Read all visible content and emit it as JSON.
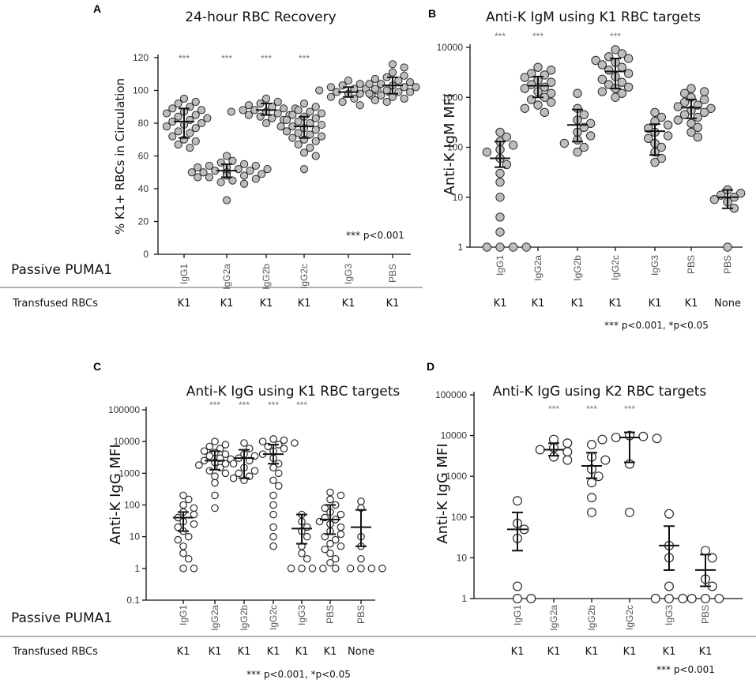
{
  "figure": {
    "row_labels": {
      "passive": "Passive PUMA1",
      "transfused": "Transfused RBCs"
    }
  },
  "chart_data": [
    {
      "panel": "A",
      "type": "scatter",
      "title": "24-hour RBC Recovery",
      "ylabel": "% K1+ RBCs in Circulation",
      "scale": "linear",
      "ylim": [
        0,
        120
      ],
      "yticks": [
        0,
        20,
        40,
        60,
        80,
        100,
        120
      ],
      "ytick_labels": [
        "0",
        "20",
        "40",
        "60",
        "80",
        "100",
        "120"
      ],
      "categories": [
        "IgG1",
        "IgG2a",
        "IgG2b",
        "IgG2c",
        "IgG3",
        "PBS"
      ],
      "transfused": [
        "K1",
        "K1",
        "K1",
        "K1",
        "K1",
        "K1"
      ],
      "significance": [
        "***",
        "***",
        "***",
        "***",
        "",
        ""
      ],
      "mean": [
        81,
        51,
        88,
        78,
        99,
        103
      ],
      "err_low": [
        71,
        47,
        85,
        71,
        96,
        98
      ],
      "err_high": [
        89,
        55,
        92,
        84,
        102,
        108
      ],
      "points": [
        [
          95,
          93,
          92,
          90,
          89,
          88,
          87,
          86,
          85,
          84,
          83,
          82,
          81,
          80,
          79,
          78,
          77,
          75,
          74,
          72,
          70,
          69,
          67,
          65
        ],
        [
          60,
          57,
          56,
          55,
          54,
          54,
          53,
          53,
          52,
          52,
          51,
          51,
          50,
          50,
          50,
          49,
          49,
          48,
          48,
          47,
          47,
          46,
          45,
          44,
          43,
          33
        ],
        [
          95,
          93,
          92,
          91,
          90,
          89,
          89,
          88,
          88,
          87,
          87,
          86,
          85,
          85,
          84,
          83,
          82,
          80
        ],
        [
          92,
          90,
          88,
          87,
          86,
          85,
          84,
          83,
          82,
          81,
          80,
          79,
          78,
          78,
          77,
          76,
          75,
          74,
          73,
          72,
          71,
          70,
          69,
          67,
          65,
          62,
          60,
          52
        ],
        [
          106,
          104,
          103,
          102,
          101,
          101,
          100,
          100,
          99,
          99,
          98,
          98,
          97,
          96,
          95,
          93,
          91
        ],
        [
          116,
          114,
          111,
          109,
          108,
          107,
          106,
          105,
          104,
          104,
          103,
          102,
          102,
          101,
          100,
          99,
          99,
          98,
          97,
          96,
          95,
          94,
          93
        ]
      ],
      "note": "*** p<0.001"
    },
    {
      "panel": "B",
      "type": "scatter",
      "title": "Anti-K IgM using K1 RBC targets",
      "ylabel": "Anti-K IgM MFI",
      "scale": "log",
      "ylim": [
        1,
        10000
      ],
      "yticks": [
        1,
        10,
        100,
        1000,
        10000
      ],
      "ytick_labels": [
        "1",
        "10",
        "100",
        "1000",
        "10000"
      ],
      "categories": [
        "IgG1",
        "IgG2a",
        "IgG2b",
        "IgG2c",
        "IgG3",
        "PBS",
        "PBS"
      ],
      "transfused": [
        "K1",
        "K1",
        "K1",
        "K1",
        "K1",
        "K1",
        "None"
      ],
      "significance": [
        "***",
        "***",
        "",
        "***",
        "",
        "",
        ""
      ],
      "mean": [
        60,
        1700,
        280,
        3300,
        210,
        620,
        10
      ],
      "err_low": [
        40,
        1000,
        130,
        1500,
        70,
        380,
        6
      ],
      "err_high": [
        130,
        2600,
        570,
        6000,
        290,
        900,
        14
      ],
      "points": [
        [
          200,
          160,
          130,
          110,
          90,
          80,
          60,
          45,
          30,
          20,
          10,
          4,
          2,
          1,
          1,
          1,
          1
        ],
        [
          4000,
          3500,
          3000,
          2800,
          2500,
          2200,
          2000,
          1800,
          1600,
          1500,
          1300,
          1200,
          1000,
          900,
          800,
          700,
          600,
          500
        ],
        [
          1200,
          600,
          450,
          350,
          300,
          250,
          200,
          170,
          140,
          120,
          100,
          80
        ],
        [
          9000,
          7500,
          6500,
          6000,
          5500,
          5000,
          4500,
          4000,
          3500,
          3000,
          2600,
          2300,
          2000,
          1800,
          1600,
          1500,
          1300,
          1200,
          1000
        ],
        [
          500,
          400,
          330,
          280,
          240,
          200,
          170,
          150,
          120,
          100,
          80,
          60,
          50
        ],
        [
          1500,
          1300,
          1200,
          1000,
          900,
          800,
          700,
          650,
          600,
          550,
          500,
          450,
          400,
          350,
          300,
          250,
          200,
          160
        ],
        [
          14,
          12,
          11,
          10,
          9,
          8,
          6,
          1
        ]
      ],
      "note": "*** p<0.001, *p<0.05"
    },
    {
      "panel": "C",
      "type": "scatter",
      "title": "Anti-K IgG using K1 RBC targets",
      "ylabel": "Anti-K IgG MFI",
      "scale": "log",
      "ylim": [
        0.1,
        100000
      ],
      "yticks": [
        0.1,
        1,
        10,
        100,
        1000,
        10000,
        100000
      ],
      "ytick_labels": [
        "0.1",
        "1",
        "10",
        "100",
        "1000",
        "10000",
        "100000"
      ],
      "categories": [
        "IgG1",
        "IgG2a",
        "IgG2b",
        "IgG2c",
        "IgG3",
        "PBS",
        "PBS"
      ],
      "transfused": [
        "K1",
        "K1",
        "K1",
        "K1",
        "K1",
        "K1",
        "None"
      ],
      "significance": [
        "",
        "***",
        "***",
        "***",
        "***",
        "",
        ""
      ],
      "mean": [
        40,
        2500,
        3000,
        4000,
        18,
        35,
        20
      ],
      "err_low": [
        15,
        1300,
        700,
        2000,
        6,
        12,
        5
      ],
      "err_high": [
        60,
        5000,
        5500,
        8000,
        50,
        100,
        70
      ],
      "points": [
        [
          200,
          150,
          100,
          80,
          60,
          50,
          40,
          30,
          25,
          20,
          15,
          10,
          8,
          5,
          3,
          2,
          1,
          1
        ],
        [
          10000,
          8000,
          7000,
          6000,
          5000,
          4500,
          4000,
          3500,
          3000,
          2800,
          2500,
          2200,
          2000,
          1800,
          1500,
          1200,
          1000,
          800,
          500,
          200,
          80
        ],
        [
          9000,
          6000,
          4000,
          3500,
          3000,
          2500,
          2000,
          1500,
          1200,
          1000,
          800,
          700,
          600
        ],
        [
          12000,
          11000,
          10000,
          9000,
          8000,
          7000,
          6000,
          5000,
          4000,
          3000,
          2000,
          1500,
          1000,
          600,
          400,
          200,
          100,
          50,
          20,
          10,
          5
        ],
        [
          50,
          30,
          20,
          15,
          10,
          5,
          3,
          2,
          1,
          1,
          1,
          1
        ],
        [
          250,
          200,
          150,
          100,
          80,
          60,
          50,
          40,
          35,
          30,
          25,
          20,
          15,
          12,
          10,
          8,
          6,
          5,
          4,
          3,
          2,
          1.5,
          1
        ],
        [
          130,
          80,
          10,
          5,
          2,
          1,
          1,
          1,
          1
        ]
      ],
      "note": "*** p<0.001, *p<0.05"
    },
    {
      "panel": "D",
      "type": "scatter",
      "title": "Anti-K IgG using K2 RBC targets",
      "ylabel": "Anti-K IgG MFI",
      "scale": "log",
      "ylim": [
        1,
        100000
      ],
      "yticks": [
        1,
        10,
        100,
        1000,
        10000,
        100000
      ],
      "ytick_labels": [
        "1",
        "10",
        "100",
        "1000",
        "10000",
        "100000"
      ],
      "categories": [
        "IgG1",
        "IgG2a",
        "IgG2b",
        "IgG2c",
        "IgG3",
        "PBS"
      ],
      "transfused": [
        "K1",
        "K1",
        "K1",
        "K1",
        "K1",
        "K1"
      ],
      "significance": [
        "",
        "***",
        "***",
        "***",
        "",
        ""
      ],
      "mean": [
        50,
        4500,
        1800,
        9000,
        20,
        5
      ],
      "err_low": [
        15,
        3200,
        900,
        2200,
        5,
        2
      ],
      "err_high": [
        130,
        6500,
        3800,
        12000,
        60,
        12
      ],
      "points": [
        [
          250,
          70,
          50,
          30,
          2,
          1,
          1
        ],
        [
          8000,
          6500,
          5000,
          4500,
          4000,
          3000,
          2500
        ],
        [
          6000,
          3000,
          2500,
          1500,
          1000,
          700,
          300,
          130
        ],
        [
          10000,
          9500,
          9000,
          8500,
          8000,
          2000,
          130
        ],
        [
          120,
          20,
          10,
          2,
          1,
          1,
          1
        ],
        [
          15,
          10,
          3,
          2,
          1,
          1,
          1
        ]
      ],
      "note": "*** p<0.001"
    }
  ]
}
